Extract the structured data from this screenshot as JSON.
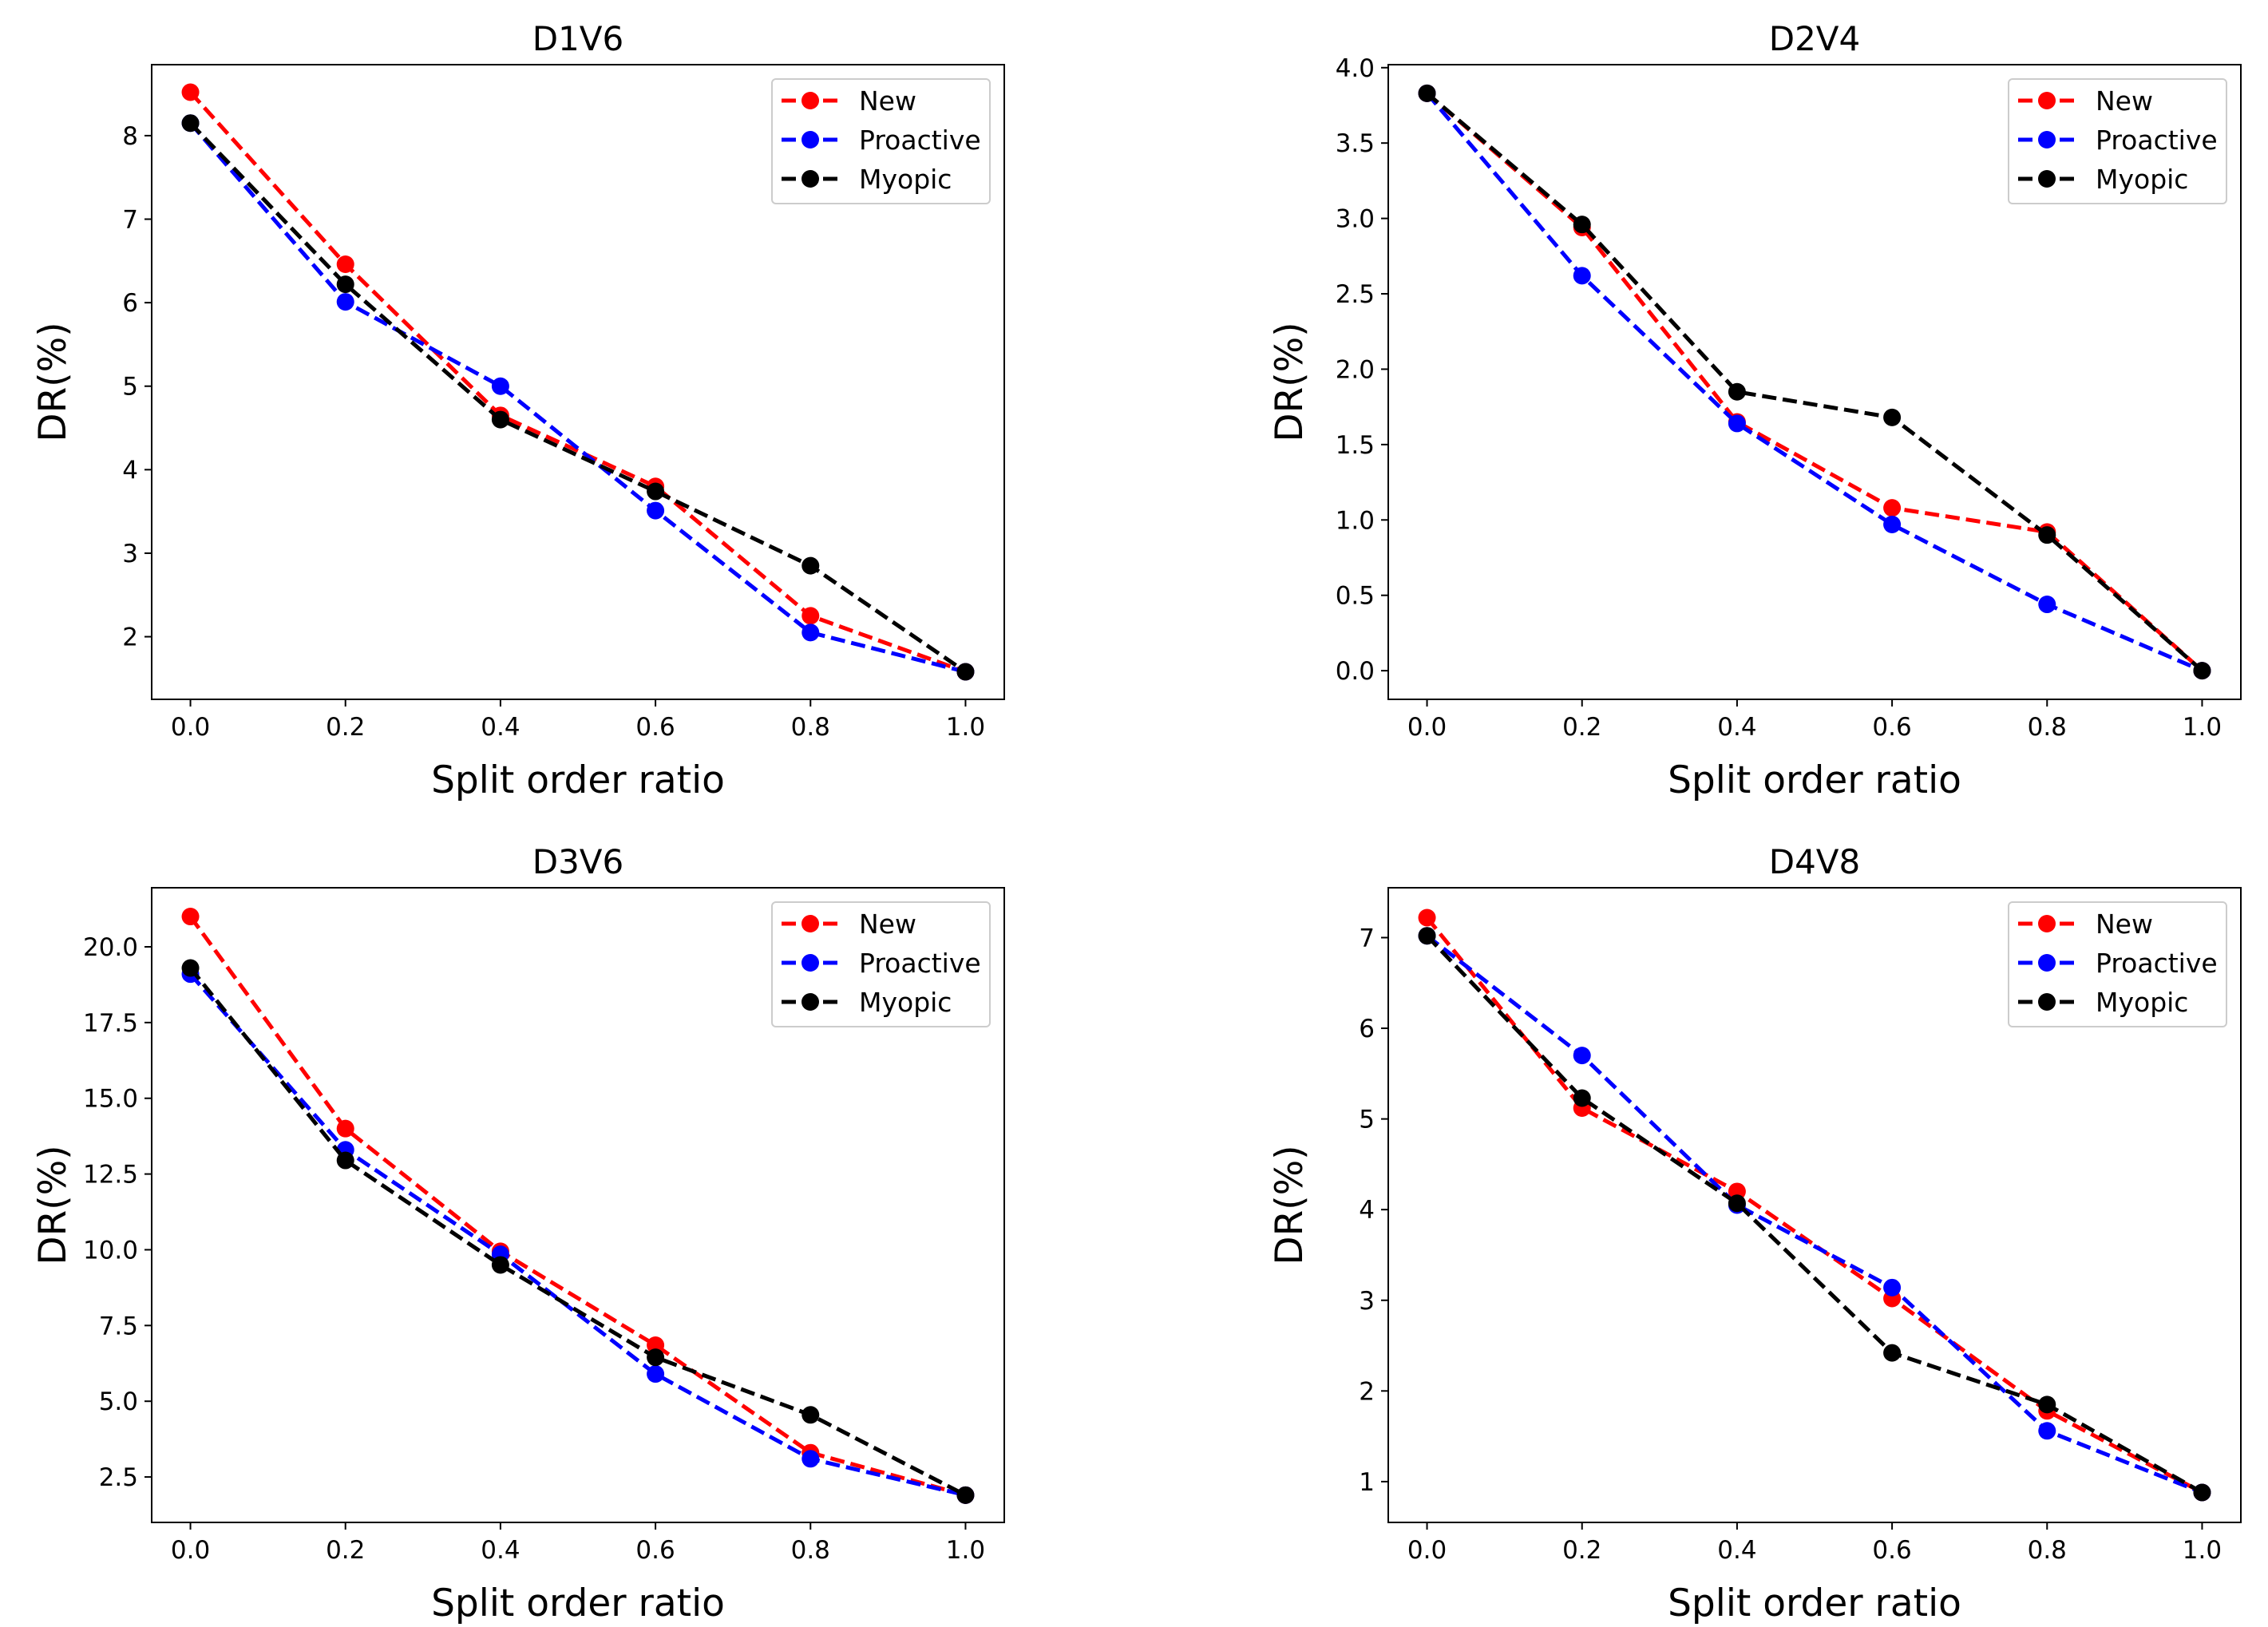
{
  "chart_data": [
    {
      "type": "line",
      "title": "D1V6",
      "xlabel": "Split order ratio",
      "ylabel": "DR(%)",
      "x": [
        0.0,
        0.2,
        0.4,
        0.6,
        0.8,
        1.0
      ],
      "xticks": [
        "0.0",
        "0.2",
        "0.4",
        "0.6",
        "0.8",
        "1.0"
      ],
      "xlim": [
        -0.05,
        1.05
      ],
      "ylim": [
        1.25,
        8.85
      ],
      "yticks": [
        "2",
        "3",
        "4",
        "5",
        "6",
        "7",
        "8"
      ],
      "legend": "top-right",
      "series": [
        {
          "name": "New",
          "color": "#ff0000",
          "values": [
            8.52,
            6.46,
            4.65,
            3.8,
            2.25,
            1.58
          ]
        },
        {
          "name": "Proactive",
          "color": "#0000ff",
          "values": [
            8.15,
            6.01,
            5.0,
            3.51,
            2.05,
            1.58
          ]
        },
        {
          "name": "Myopic",
          "color": "#000000",
          "values": [
            8.15,
            6.22,
            4.6,
            3.74,
            2.85,
            1.58
          ]
        }
      ]
    },
    {
      "type": "line",
      "title": "D2V4",
      "xlabel": "Split order ratio",
      "ylabel": "DR(%)",
      "x": [
        0.0,
        0.2,
        0.4,
        0.6,
        0.8,
        1.0
      ],
      "xticks": [
        "0.0",
        "0.2",
        "0.4",
        "0.6",
        "0.8",
        "1.0"
      ],
      "xlim": [
        -0.05,
        1.05
      ],
      "ylim": [
        -0.19,
        4.02
      ],
      "yticks": [
        "0.0",
        "0.5",
        "1.0",
        "1.5",
        "2.0",
        "2.5",
        "3.0",
        "3.5",
        "4.0"
      ],
      "legend": "top-right",
      "series": [
        {
          "name": "New",
          "color": "#ff0000",
          "values": [
            3.83,
            2.94,
            1.65,
            1.08,
            0.92,
            0.0
          ]
        },
        {
          "name": "Proactive",
          "color": "#0000ff",
          "values": [
            3.83,
            2.62,
            1.64,
            0.97,
            0.44,
            0.0
          ]
        },
        {
          "name": "Myopic",
          "color": "#000000",
          "values": [
            3.83,
            2.96,
            1.85,
            1.68,
            0.9,
            0.0
          ]
        }
      ]
    },
    {
      "type": "line",
      "title": "D3V6",
      "xlabel": "Split order ratio",
      "ylabel": "DR(%)",
      "x": [
        0.0,
        0.2,
        0.4,
        0.6,
        0.8,
        1.0
      ],
      "xticks": [
        "0.0",
        "0.2",
        "0.4",
        "0.6",
        "0.8",
        "1.0"
      ],
      "xlim": [
        -0.05,
        1.05
      ],
      "ylim": [
        1.0,
        21.95
      ],
      "yticks": [
        "2.5",
        "5.0",
        "7.5",
        "10.0",
        "12.5",
        "15.0",
        "17.5",
        "20.0"
      ],
      "legend": "top-right",
      "series": [
        {
          "name": "New",
          "color": "#ff0000",
          "values": [
            21.0,
            14.0,
            9.95,
            6.85,
            3.3,
            1.9
          ]
        },
        {
          "name": "Proactive",
          "color": "#0000ff",
          "values": [
            19.1,
            13.3,
            9.85,
            5.9,
            3.1,
            1.9
          ]
        },
        {
          "name": "Myopic",
          "color": "#000000",
          "values": [
            19.3,
            12.95,
            9.5,
            6.45,
            4.55,
            1.9
          ]
        }
      ]
    },
    {
      "type": "line",
      "title": "D4V8",
      "xlabel": "Split order ratio",
      "ylabel": "DR(%)",
      "x": [
        0.0,
        0.2,
        0.4,
        0.6,
        0.8,
        1.0
      ],
      "xticks": [
        "0.0",
        "0.2",
        "0.4",
        "0.6",
        "0.8",
        "1.0"
      ],
      "xlim": [
        -0.05,
        1.05
      ],
      "ylim": [
        0.55,
        7.55
      ],
      "yticks": [
        "1",
        "2",
        "3",
        "4",
        "5",
        "6",
        "7"
      ],
      "legend": "top-right",
      "series": [
        {
          "name": "New",
          "color": "#ff0000",
          "values": [
            7.22,
            5.12,
            4.2,
            3.02,
            1.78,
            0.88
          ]
        },
        {
          "name": "Proactive",
          "color": "#0000ff",
          "values": [
            7.02,
            5.7,
            4.05,
            3.14,
            1.56,
            0.88
          ]
        },
        {
          "name": "Myopic",
          "color": "#000000",
          "values": [
            7.02,
            5.23,
            4.07,
            2.42,
            1.85,
            0.88
          ]
        }
      ]
    }
  ]
}
